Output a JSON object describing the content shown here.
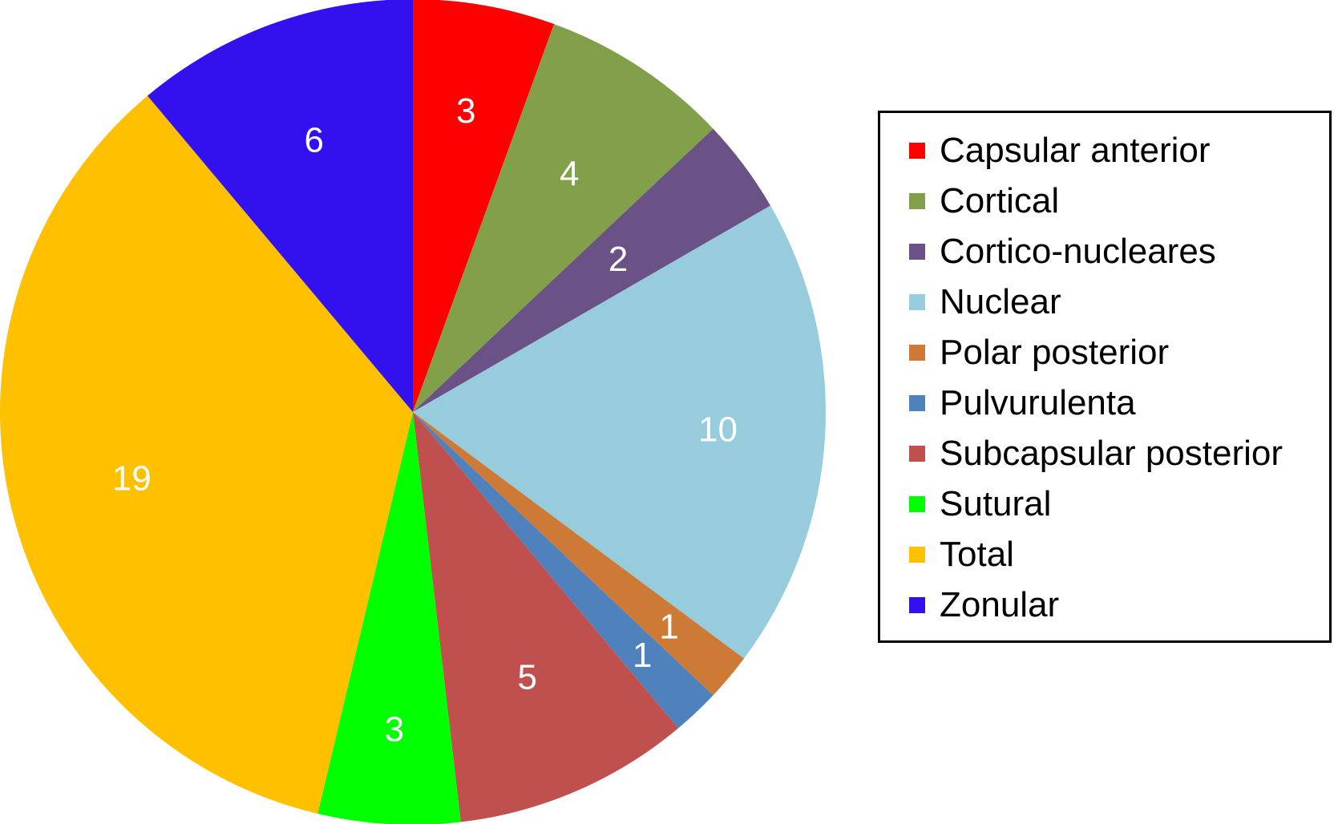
{
  "chart_data": {
    "type": "pie",
    "title": "",
    "legend_position": "right",
    "slices": [
      {
        "label": "Capsular anterior",
        "value": 3,
        "color": "#ff0000"
      },
      {
        "label": "Cortical",
        "value": 4,
        "color": "#82a04a"
      },
      {
        "label": "Cortico-nucleares",
        "value": 2,
        "color": "#6a5186"
      },
      {
        "label": "Nuclear",
        "value": 10,
        "color": "#96ccdb"
      },
      {
        "label": "Polar posterior",
        "value": 1,
        "color": "#cd7a37"
      },
      {
        "label": "Pulvurulenta",
        "value": 1,
        "color": "#4f81bd"
      },
      {
        "label": "Subcapsular posterior",
        "value": 5,
        "color": "#c0504d"
      },
      {
        "label": "Sutural",
        "value": 3,
        "color": "#00ff00"
      },
      {
        "label": "Total",
        "value": 19,
        "color": "#ffc000"
      },
      {
        "label": "Zonular",
        "value": 6,
        "color": "#3311ee"
      }
    ]
  }
}
